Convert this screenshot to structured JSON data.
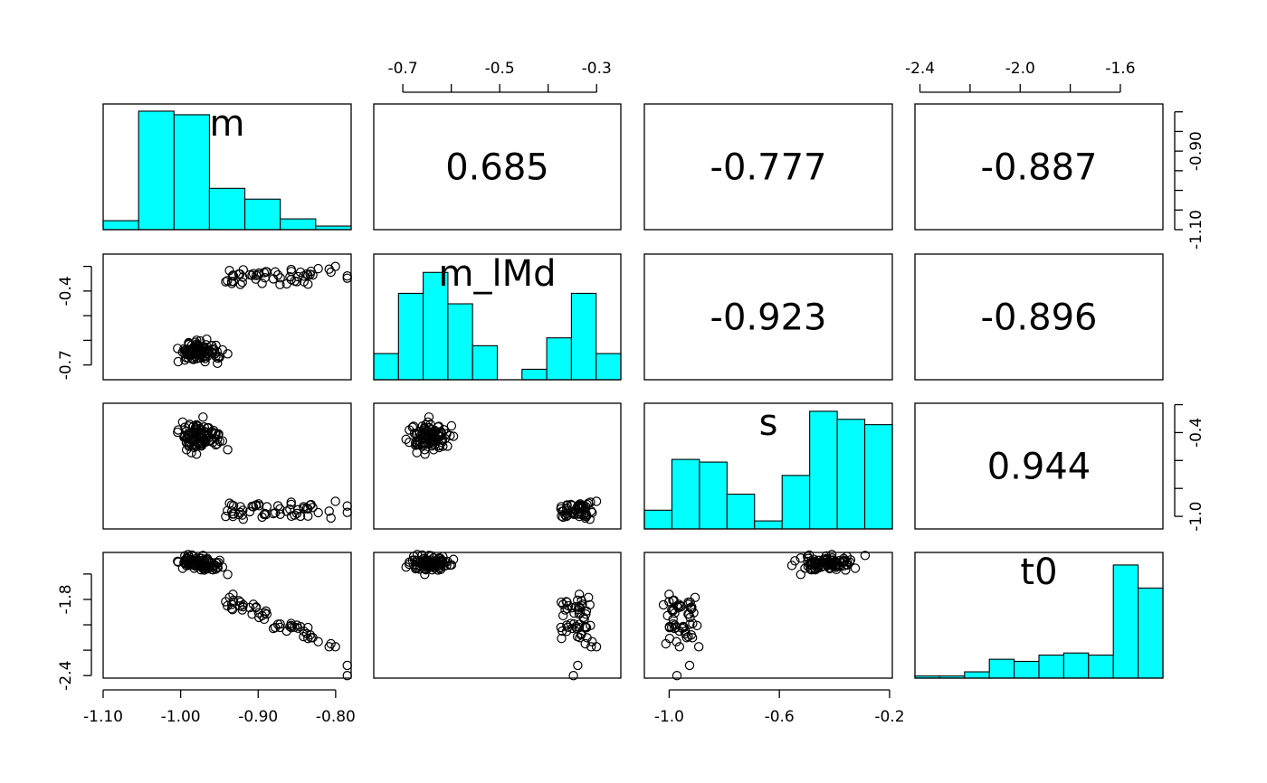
{
  "chart_data": {
    "type": "scatter",
    "subtype": "pairs",
    "title": "",
    "variables": [
      "m",
      "m_lMd",
      "s",
      "t0"
    ],
    "ranges": {
      "m": [
        -1.1,
        -0.78
      ],
      "m_lMd": [
        -0.76,
        -0.25
      ],
      "s": [
        -1.09,
        -0.19
      ],
      "t0": [
        -2.42,
        -1.43
      ]
    },
    "axes": {
      "bottom": [
        {
          "col": 0,
          "ticks": [
            "-1.10",
            "-1.00",
            "-0.90",
            "-0.80"
          ],
          "values": [
            -1.1,
            -1.0,
            -0.9,
            -0.8
          ]
        },
        {
          "col": 2,
          "ticks": [
            "-1.0",
            "-0.6",
            "-0.2"
          ],
          "values": [
            -1.0,
            -0.6,
            -0.2
          ]
        }
      ],
      "top": [
        {
          "col": 1,
          "ticks": [
            "-0.7",
            "-0.5",
            "-0.3"
          ],
          "values": [
            -0.7,
            -0.6,
            -0.5,
            -0.4,
            -0.3
          ]
        },
        {
          "col": 3,
          "ticks": [
            "-2.4",
            "-2.0",
            "-1.6"
          ],
          "values": [
            -2.4,
            -2.2,
            -2.0,
            -1.8,
            -1.6
          ]
        }
      ],
      "left": [
        {
          "row": 1,
          "ticks": [
            "-0.4",
            "-0.7"
          ],
          "values": [
            -0.7,
            -0.6,
            -0.5,
            -0.4,
            -0.3
          ]
        },
        {
          "row": 3,
          "ticks": [
            "-1.8",
            "-2.4"
          ],
          "values": [
            -2.4,
            -2.2,
            -2.0,
            -1.8,
            -1.6
          ]
        }
      ],
      "right": [
        {
          "row": 0,
          "ticks": [
            "-0.90",
            "-1.10"
          ],
          "values": [
            -1.1,
            -1.05,
            -1.0,
            -0.95,
            -0.9,
            -0.85,
            -0.8
          ]
        },
        {
          "row": 2,
          "ticks": [
            "-0.4",
            "-1.0"
          ],
          "values": [
            -1.0,
            -0.8,
            -0.6,
            -0.4,
            -0.2
          ]
        }
      ]
    },
    "correlations": [
      {
        "row": 0,
        "col": 1,
        "value": "0.685"
      },
      {
        "row": 0,
        "col": 2,
        "value": "-0.777"
      },
      {
        "row": 0,
        "col": 3,
        "value": "-0.887"
      },
      {
        "row": 1,
        "col": 2,
        "value": "-0.923"
      },
      {
        "row": 1,
        "col": 3,
        "value": "-0.896"
      },
      {
        "row": 2,
        "col": 3,
        "value": "0.944"
      }
    ],
    "histograms": {
      "m": {
        "breaks": [
          -1.1,
          -1.05,
          -1.0,
          -0.95,
          -0.9,
          -0.85,
          -0.8,
          -0.75
        ],
        "counts": [
          5,
          66,
          64,
          23,
          17,
          6,
          2
        ],
        "ymax": 70
      },
      "m_lMd": {
        "breaks": [
          -0.75,
          -0.7,
          -0.65,
          -0.6,
          -0.55,
          -0.5,
          -0.45,
          -0.4,
          -0.35,
          -0.3,
          -0.25
        ],
        "counts": [
          10,
          33,
          41,
          29,
          13,
          0,
          4,
          16,
          33,
          10
        ],
        "ymax": 48
      },
      "s": {
        "breaks": [
          -1.1,
          -1.0,
          -0.9,
          -0.8,
          -0.7,
          -0.6,
          -0.5,
          -0.4,
          -0.3,
          -0.2
        ],
        "counts": [
          7,
          26,
          25,
          13,
          3,
          20,
          44,
          41,
          39
        ],
        "ymax": 47
      },
      "t0": {
        "breaks": [
          -2.4,
          -2.3,
          -2.2,
          -2.1,
          -2.0,
          -1.9,
          -1.8,
          -1.7,
          -1.6,
          -1.5,
          -1.4
        ],
        "counts": [
          1,
          1,
          3,
          9,
          8,
          11,
          12,
          11,
          54,
          43
        ],
        "ymax": 60
      }
    },
    "fill_color": "#00FFFF",
    "point_style": "open-circle",
    "point_count": 150
  }
}
